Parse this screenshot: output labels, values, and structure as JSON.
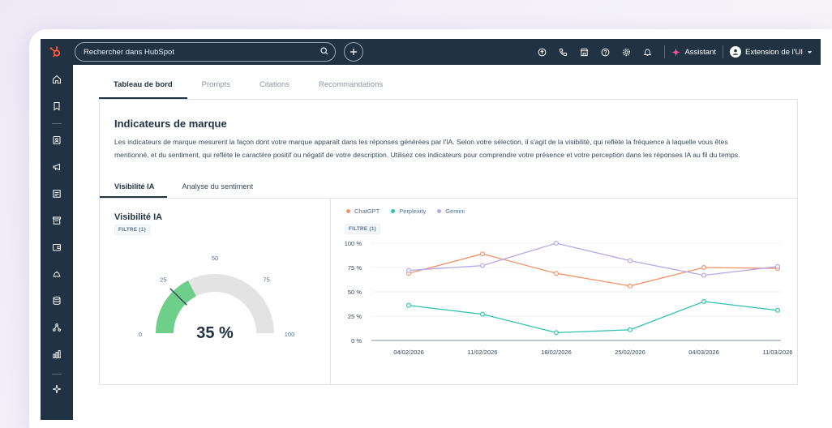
{
  "topbar": {
    "search_placeholder": "Rechercher dans HubSpot",
    "assistant_label": "Assistant",
    "account_label": "Extension de l'UI"
  },
  "tabs": [
    {
      "label": "Tableau de bord",
      "active": true
    },
    {
      "label": "Prompts",
      "active": false
    },
    {
      "label": "Citations",
      "active": false
    },
    {
      "label": "Recommandations",
      "active": false
    }
  ],
  "card": {
    "title": "Indicateurs de marque",
    "description": "Les indicateurs de marque mesurent la façon dont votre marque apparaît dans les réponses générées par l'IA. Selon votre sélection, il s'agit de la visibilité, qui reflète la fréquence à laquelle vous êtes mentionné, et du sentiment, qui reflète le caractère positif ou négatif de votre description. Utilisez ces indicateurs pour comprendre votre présence et votre perception dans les réponses IA au fil du temps.",
    "subtabs": [
      {
        "label": "Visibilité IA",
        "active": true
      },
      {
        "label": "Analyse du sentiment",
        "active": false
      }
    ]
  },
  "gauge_panel": {
    "title": "Visibilité IA",
    "filter_label": "FILTRE (1)",
    "value_label": "35 %",
    "value": 35,
    "min": 0,
    "max": 100,
    "ticks": [
      "0",
      "25",
      "50",
      "75",
      "100"
    ],
    "target": 25,
    "fill_color": "#6dcf8a",
    "track_color": "#e3e3e3"
  },
  "line_panel": {
    "filter_label": "FILTRE (1)"
  },
  "chart_data": {
    "type": "line",
    "x": [
      "04/02/2026",
      "11/02/2026",
      "18/02/2026",
      "25/02/2026",
      "04/03/2026",
      "11/03/2026"
    ],
    "y_ticks": [
      "100 %",
      "75 %",
      "50 %",
      "25 %",
      "0 %"
    ],
    "ylim": [
      0,
      100
    ],
    "grid": true,
    "legend_position": "top-left",
    "series": [
      {
        "name": "ChatGPT",
        "color": "#f2936a",
        "values": [
          69,
          89,
          69,
          56,
          75,
          74
        ]
      },
      {
        "name": "Perplexity",
        "color": "#2fc1b1",
        "values": [
          36,
          27,
          8,
          11,
          40,
          31
        ]
      },
      {
        "name": "Gemini",
        "color": "#b7a6e8",
        "values": [
          72,
          77,
          100,
          82,
          67,
          76
        ]
      }
    ]
  }
}
